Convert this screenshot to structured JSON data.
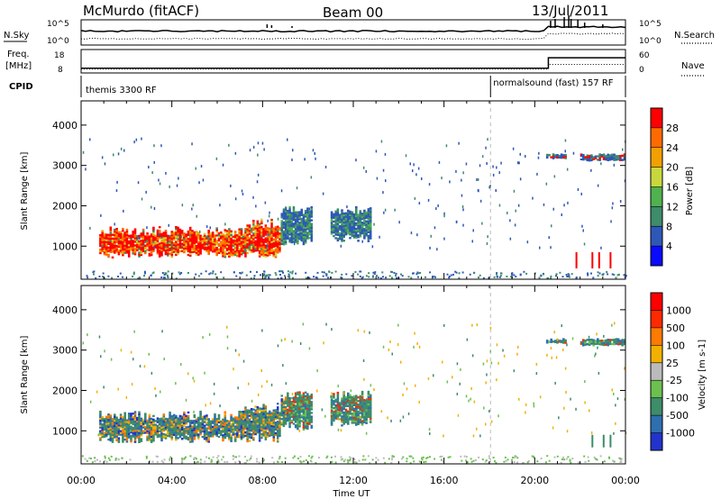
{
  "header": {
    "station": "McMurdo (fitACF)",
    "beam": "Beam 00",
    "date": "13/Jul/2011"
  },
  "noise_panel": {
    "left_label": "N.Sky",
    "left_ticks": [
      "10^5",
      "10^0"
    ],
    "right_ticks": [
      "10^5",
      "10^0"
    ],
    "right_label": "N.Search",
    "right_line_style": "dotted",
    "sky_level_fraction": [
      0.55,
      0.72
    ],
    "search_level_fraction": [
      0.25,
      0.45
    ]
  },
  "freq_panel": {
    "left_label_1": "Freq.",
    "left_label_2": "[MHz]",
    "left_ticks": [
      "18",
      "8"
    ],
    "right_ticks": [
      "60",
      "0"
    ],
    "right_label": "Nave",
    "right_line_style": "dotted",
    "freq_before_mhz": 10,
    "freq_after_mhz": 14.5,
    "nave_before": 10,
    "nave_after": 22,
    "change_hour": 20.6
  },
  "cpid_panel": {
    "label": "CPID",
    "program_1": "themis 3300 RF",
    "program_2": "normalsound (fast) 157 RF",
    "change_hour": 18.05
  },
  "chart_data": [
    {
      "type": "heatmap",
      "name": "Power",
      "ylabel": "Slant Range [km]",
      "xlabel": "Time UT",
      "x_ticks": [
        "00:00",
        "04:00",
        "08:00",
        "12:00",
        "16:00",
        "20:00",
        "00:00"
      ],
      "x_range_hours": [
        0,
        24
      ],
      "y_range_km": [
        180,
        4600
      ],
      "y_ticks": [
        "1000",
        "2000",
        "3000",
        "4000"
      ],
      "colorbar_label": "Power [dB]",
      "colorbar_ticks": [
        "4",
        "8",
        "12",
        "16",
        "20",
        "24",
        "28"
      ],
      "colors": [
        "#0a0aff",
        "#2f57b8",
        "#3d8c6a",
        "#4fb24f",
        "#c8d83c",
        "#f2a000",
        "#ff6a00",
        "#ff0000"
      ],
      "regions": [
        {
          "t_start": 0.8,
          "t_end": 7.2,
          "r_start": 700,
          "r_end": 1500,
          "level": "high"
        },
        {
          "t_start": 7.2,
          "t_end": 8.8,
          "r_start": 700,
          "r_end": 1700,
          "level": "high"
        },
        {
          "t_start": 8.8,
          "t_end": 10.2,
          "r_start": 1000,
          "r_end": 2000,
          "level": "low"
        },
        {
          "t_start": 11.0,
          "t_end": 12.8,
          "r_start": 1100,
          "r_end": 2000,
          "level": "low"
        },
        {
          "t_start": 22.0,
          "t_end": 24.0,
          "r_start": 3100,
          "r_end": 3300,
          "level": "mixed"
        },
        {
          "t_start": 20.5,
          "t_end": 21.4,
          "r_start": 3150,
          "r_end": 3300,
          "level": "mixed"
        }
      ]
    },
    {
      "type": "heatmap",
      "name": "Velocity",
      "ylabel": "Slant Range [km]",
      "xlabel": "Time UT",
      "x_ticks": [
        "00:00",
        "04:00",
        "08:00",
        "12:00",
        "16:00",
        "20:00",
        "00:00"
      ],
      "x_range_hours": [
        0,
        24
      ],
      "y_range_km": [
        180,
        4600
      ],
      "y_ticks": [
        "1000",
        "2000",
        "3000",
        "4000"
      ],
      "colorbar_label": "Velocity [m s-1]",
      "colorbar_ticks": [
        "1000",
        "500",
        "100",
        "25",
        "-25",
        "-100",
        "-500",
        "-1000"
      ],
      "colors": [
        "#2233cc",
        "#2e6fb0",
        "#3d8c6a",
        "#6cc050",
        "#bbbbbb",
        "#f2b000",
        "#ff7a00",
        "#ff2a00",
        "#ff0000"
      ],
      "regions": [
        {
          "t_start": 0.8,
          "t_end": 7.2,
          "r_start": 700,
          "r_end": 1500,
          "level": "mixed"
        },
        {
          "t_start": 7.2,
          "t_end": 8.8,
          "r_start": 700,
          "r_end": 1700,
          "level": "mixed"
        },
        {
          "t_start": 8.8,
          "t_end": 10.2,
          "r_start": 1000,
          "r_end": 2000,
          "level": "mixed"
        },
        {
          "t_start": 11.0,
          "t_end": 12.8,
          "r_start": 1100,
          "r_end": 2000,
          "level": "mixed"
        },
        {
          "t_start": 22.0,
          "t_end": 24.0,
          "r_start": 3100,
          "r_end": 3300,
          "level": "mixed"
        },
        {
          "t_start": 20.5,
          "t_end": 21.4,
          "r_start": 3150,
          "r_end": 3300,
          "level": "mixed"
        }
      ]
    }
  ]
}
